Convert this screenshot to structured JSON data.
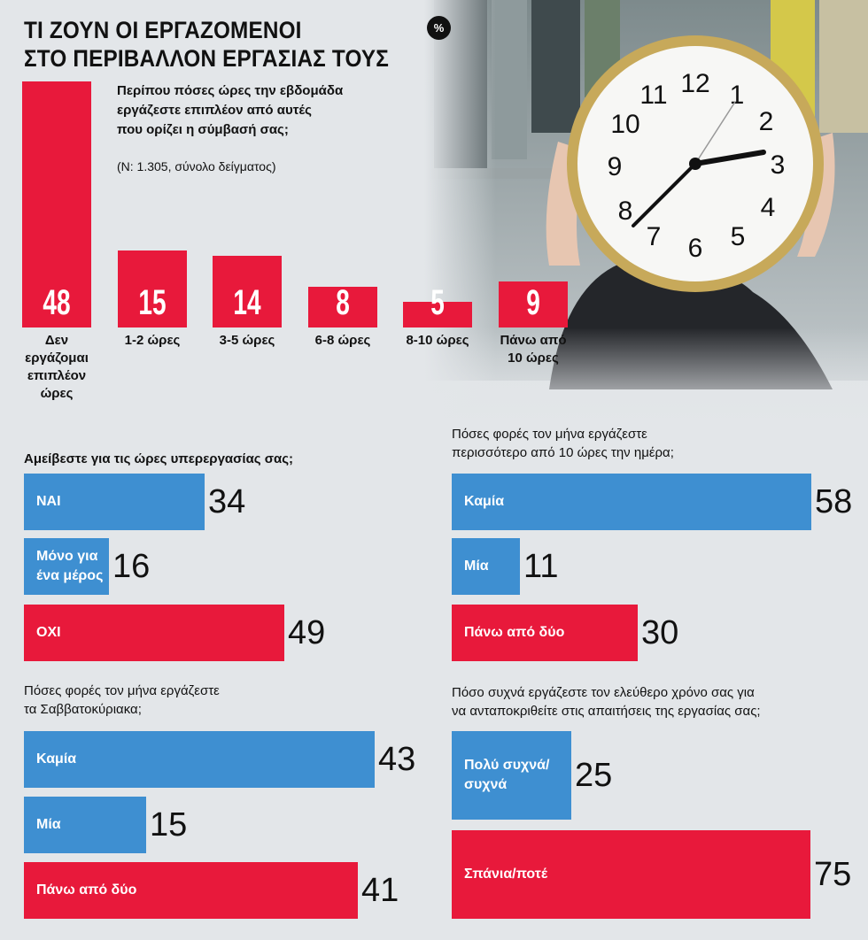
{
  "title_line1": "ΤΙ ΖΟΥΝ ΟΙ ΕΡΓΑΖΟΜΕΝΟΙ",
  "title_line2": "ΣΤΟ ΠΕΡΙΒΑΛΛΟΝ ΕΡΓΑΣΙΑΣ ΤΟΥΣ",
  "percent_badge": "%",
  "colors": {
    "red": "#e8193b",
    "blue": "#3e8fd1",
    "background": "#e3e6e9"
  },
  "photo_icon": "wall-clock-photo",
  "chart_data": [
    {
      "type": "bar",
      "title": "Περίπου πόσες ώρες την εβδομάδα εργάζεστε επιπλέον από αυτές που ορίζει η σύμβασή σας;",
      "title_lines": [
        "Περίπου πόσες ώρες την εβδομάδα",
        "εργάζεστε επιπλέον από αυτές",
        "που ορίζει η σύμβασή σας;"
      ],
      "subtitle": "(N: 1.305, σύνολο δείγματος)",
      "categories": [
        "Δεν εργάζομαι επιπλέον ώρες",
        "1-2 ώρες",
        "3-5 ώρες",
        "6-8 ώρες",
        "8-10 ώρες",
        "Πάνω από 10 ώρες"
      ],
      "category_lines": [
        [
          "Δεν",
          "εργάζομαι",
          "επιπλέον",
          "ώρες"
        ],
        [
          "1-2 ώρες"
        ],
        [
          "3-5 ώρες"
        ],
        [
          "6-8 ώρες"
        ],
        [
          "8-10 ώρες"
        ],
        [
          "Πάνω από",
          "10 ώρες"
        ]
      ],
      "values": [
        48,
        15,
        14,
        8,
        5,
        9
      ],
      "value_labels": [
        "48",
        "15",
        "14",
        "8",
        "5",
        "9"
      ]
    },
    {
      "type": "bar",
      "orientation": "horizontal",
      "title": "Αμείβεστε για τις ώρες υπερεργασίας σας;",
      "title_lines": [
        "Αμείβεστε για τις ώρες υπερεργασίας σας;"
      ],
      "categories": [
        "ΝΑΙ",
        "Μόνο για ένα μέρος",
        "ΟΧΙ"
      ],
      "category_lines": [
        [
          "ΝΑΙ"
        ],
        [
          "Μόνο για",
          "ένα μέρος"
        ],
        [
          "ΟΧΙ"
        ]
      ],
      "values": [
        34,
        16,
        49
      ],
      "value_labels": [
        "34",
        "16",
        "49"
      ],
      "bar_colors": [
        "blue",
        "blue",
        "red"
      ]
    },
    {
      "type": "bar",
      "orientation": "horizontal",
      "title": "Πόσες φορές τον μήνα εργάζεστε περισσότερο από 10 ώρες την ημέρα;",
      "title_lines": [
        "Πόσες φορές τον μήνα εργάζεστε",
        "περισσότερο από 10 ώρες την ημέρα;"
      ],
      "categories": [
        "Καμία",
        "Μία",
        "Πάνω από δύο"
      ],
      "category_lines": [
        [
          "Καμία"
        ],
        [
          "Μία"
        ],
        [
          "Πάνω από δύο"
        ]
      ],
      "values": [
        58,
        11,
        30
      ],
      "value_labels": [
        "58",
        "11",
        "30"
      ],
      "bar_colors": [
        "blue",
        "blue",
        "red"
      ]
    },
    {
      "type": "bar",
      "orientation": "horizontal",
      "title": "Πόσες φορές τον μήνα εργάζεστε τα Σαββατοκύριακα;",
      "title_lines": [
        "Πόσες φορές τον μήνα εργάζεστε",
        "τα Σαββατοκύριακα;"
      ],
      "categories": [
        "Καμία",
        "Μία",
        "Πάνω από δύο"
      ],
      "category_lines": [
        [
          "Καμία"
        ],
        [
          "Μία"
        ],
        [
          "Πάνω από δύο"
        ]
      ],
      "values": [
        43,
        15,
        41
      ],
      "value_labels": [
        "43",
        "15",
        "41"
      ],
      "bar_colors": [
        "blue",
        "blue",
        "red"
      ]
    },
    {
      "type": "bar",
      "orientation": "horizontal",
      "title": "Πόσο συχνά εργάζεστε τον ελεύθερο χρόνο σας για να ανταποκριθείτε στις απαιτήσεις της εργασίας σας;",
      "title_lines": [
        "Πόσο συχνά εργάζεστε τον ελεύθερο χρόνο σας για",
        "να ανταποκριθείτε στις απαιτήσεις της εργασίας σας;"
      ],
      "categories": [
        "Πολύ συχνά/ συχνά",
        "Σπάνια/ποτέ"
      ],
      "category_lines": [
        [
          "Πολύ συχνά/",
          "συχνά"
        ],
        [
          "Σπάνια/ποτέ"
        ]
      ],
      "values": [
        25,
        75
      ],
      "value_labels": [
        "25",
        "75"
      ],
      "bar_colors": [
        "blue",
        "red"
      ]
    }
  ]
}
